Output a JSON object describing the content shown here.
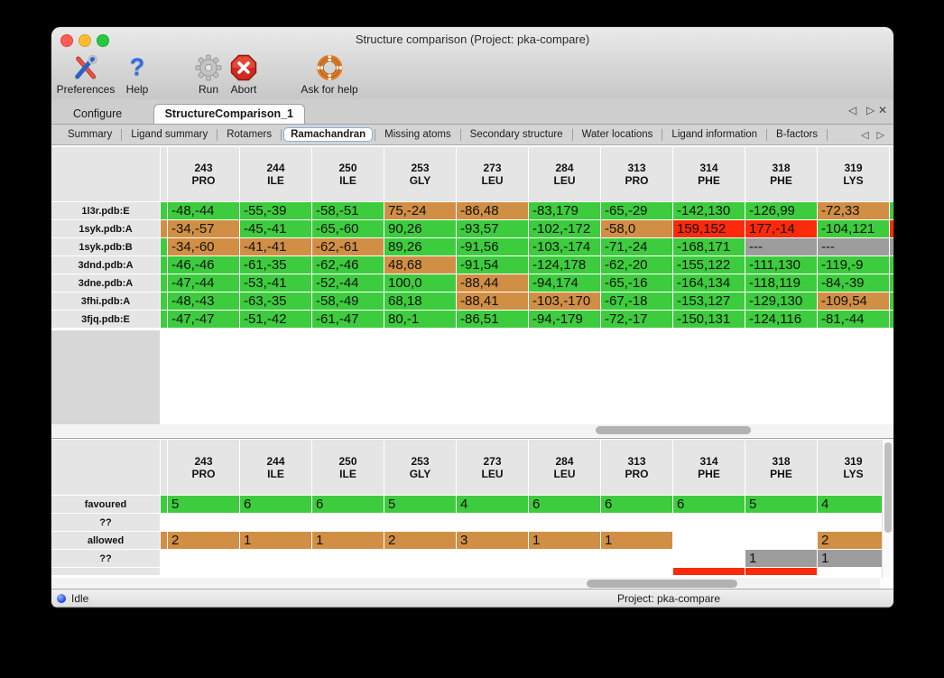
{
  "window": {
    "title": "Structure comparison (Project: pka-compare)"
  },
  "toolbar": {
    "items": [
      {
        "label": "Preferences",
        "icon": "tools-icon"
      },
      {
        "label": "Help",
        "icon": "question-icon"
      },
      {
        "label": "Run",
        "icon": "gear-icon"
      },
      {
        "label": "Abort",
        "icon": "stop-icon"
      },
      {
        "label": "Ask for help",
        "icon": "lifebuoy-icon"
      }
    ]
  },
  "main_tabs": {
    "items": [
      {
        "label": "Configure",
        "selected": false
      },
      {
        "label": "StructureComparison_1",
        "selected": true
      }
    ],
    "controls": {
      "prev": "◁",
      "next": "▷",
      "close": "✕"
    }
  },
  "sub_tabs": {
    "items": [
      "Summary",
      "Ligand summary",
      "Rotamers",
      "Ramachandran",
      "Missing atoms",
      "Secondary structure",
      "Water locations",
      "Ligand information",
      "B-factors"
    ],
    "selected": "Ramachandran",
    "controls": {
      "prev": "◁",
      "next": "▷"
    }
  },
  "legend_colors": {
    "favoured": "#3dcc3d",
    "allowed": "#d18f45",
    "outlier": "#fa2a0a",
    "missing": "#9d9d9d",
    "empty": "#ffffff"
  },
  "columns": [
    {
      "num": "243",
      "res": "PRO"
    },
    {
      "num": "244",
      "res": "ILE"
    },
    {
      "num": "250",
      "res": "ILE"
    },
    {
      "num": "253",
      "res": "GLY"
    },
    {
      "num": "273",
      "res": "LEU"
    },
    {
      "num": "284",
      "res": "LEU"
    },
    {
      "num": "313",
      "res": "PRO"
    },
    {
      "num": "314",
      "res": "PHE"
    },
    {
      "num": "318",
      "res": "PHE"
    },
    {
      "num": "319",
      "res": "LYS"
    }
  ],
  "structure_table": {
    "rows": [
      {
        "label": "1l3r.pdb:E",
        "edge": "g",
        "right": "g",
        "cells": [
          [
            "-48,-44",
            "g"
          ],
          [
            "-55,-39",
            "g"
          ],
          [
            "-58,-51",
            "g"
          ],
          [
            "75,-24",
            "o"
          ],
          [
            "-86,48",
            "o"
          ],
          [
            "-83,179",
            "g"
          ],
          [
            "-65,-29",
            "g"
          ],
          [
            "-142,130",
            "g"
          ],
          [
            "-126,99",
            "g"
          ],
          [
            "-72,33",
            "o"
          ]
        ]
      },
      {
        "label": "1syk.pdb:A",
        "edge": "o",
        "right": "r",
        "cells": [
          [
            "-34,-57",
            "o"
          ],
          [
            "-45,-41",
            "g"
          ],
          [
            "-65,-60",
            "g"
          ],
          [
            "90,26",
            "g"
          ],
          [
            "-93,57",
            "g"
          ],
          [
            "-102,-172",
            "g"
          ],
          [
            "-58,0",
            "o"
          ],
          [
            "159,152",
            "r"
          ],
          [
            "177,-14",
            "r"
          ],
          [
            "-104,121",
            "g"
          ]
        ]
      },
      {
        "label": "1syk.pdb:B",
        "edge": "g",
        "right": "x",
        "cells": [
          [
            "-34,-60",
            "o"
          ],
          [
            "-41,-41",
            "o"
          ],
          [
            "-62,-61",
            "o"
          ],
          [
            "89,26",
            "g"
          ],
          [
            "-91,56",
            "g"
          ],
          [
            "-103,-174",
            "g"
          ],
          [
            "-71,-24",
            "g"
          ],
          [
            "-168,171",
            "g"
          ],
          [
            "---",
            "x"
          ],
          [
            "---",
            "x"
          ]
        ]
      },
      {
        "label": "3dnd.pdb:A",
        "edge": "g",
        "right": "g",
        "cells": [
          [
            "-46,-46",
            "g"
          ],
          [
            "-61,-35",
            "g"
          ],
          [
            "-62,-46",
            "g"
          ],
          [
            "48,68",
            "o"
          ],
          [
            "-91,54",
            "g"
          ],
          [
            "-124,178",
            "g"
          ],
          [
            "-62,-20",
            "g"
          ],
          [
            "-155,122",
            "g"
          ],
          [
            "-111,130",
            "g"
          ],
          [
            "-119,-9",
            "g"
          ]
        ]
      },
      {
        "label": "3dne.pdb:A",
        "edge": "g",
        "right": "g",
        "cells": [
          [
            "-47,-44",
            "g"
          ],
          [
            "-53,-41",
            "g"
          ],
          [
            "-52,-44",
            "g"
          ],
          [
            "100,0",
            "g"
          ],
          [
            "-88,44",
            "o"
          ],
          [
            "-94,174",
            "g"
          ],
          [
            "-65,-16",
            "g"
          ],
          [
            "-164,134",
            "g"
          ],
          [
            "-118,119",
            "g"
          ],
          [
            "-84,-39",
            "g"
          ]
        ]
      },
      {
        "label": "3fhi.pdb:A",
        "edge": "g",
        "right": "g",
        "cells": [
          [
            "-48,-43",
            "g"
          ],
          [
            "-63,-35",
            "g"
          ],
          [
            "-58,-49",
            "g"
          ],
          [
            "68,18",
            "g"
          ],
          [
            "-88,41",
            "o"
          ],
          [
            "-103,-170",
            "o"
          ],
          [
            "-67,-18",
            "g"
          ],
          [
            "-153,127",
            "g"
          ],
          [
            "-129,130",
            "g"
          ],
          [
            "-109,54",
            "o"
          ]
        ]
      },
      {
        "label": "3fjq.pdb:E",
        "edge": "g",
        "right": "g",
        "cells": [
          [
            "-47,-47",
            "g"
          ],
          [
            "-51,-42",
            "g"
          ],
          [
            "-61,-47",
            "g"
          ],
          [
            "80,-1",
            "g"
          ],
          [
            "-86,51",
            "g"
          ],
          [
            "-94,-179",
            "g"
          ],
          [
            "-72,-17",
            "g"
          ],
          [
            "-150,131",
            "g"
          ],
          [
            "-124,116",
            "g"
          ],
          [
            "-81,-44",
            "g"
          ]
        ]
      }
    ]
  },
  "summary_table": {
    "rows": [
      {
        "label": "favoured",
        "edge": "g",
        "right": "w",
        "cells": [
          [
            "5",
            "g"
          ],
          [
            "6",
            "g"
          ],
          [
            "6",
            "g"
          ],
          [
            "5",
            "g"
          ],
          [
            "4",
            "g"
          ],
          [
            "6",
            "g"
          ],
          [
            "6",
            "g"
          ],
          [
            "6",
            "g"
          ],
          [
            "5",
            "g"
          ],
          [
            "4",
            "g"
          ]
        ]
      },
      {
        "label": "??",
        "edge": "w",
        "right": "w",
        "cells": [
          [
            "",
            "w"
          ],
          [
            "",
            "w"
          ],
          [
            "",
            "w"
          ],
          [
            "",
            "w"
          ],
          [
            "",
            "w"
          ],
          [
            "",
            "w"
          ],
          [
            "",
            "w"
          ],
          [
            "",
            "w"
          ],
          [
            "",
            "w"
          ],
          [
            "",
            "w"
          ]
        ]
      },
      {
        "label": "allowed",
        "edge": "o",
        "right": "w",
        "cells": [
          [
            "2",
            "o"
          ],
          [
            "1",
            "o"
          ],
          [
            "1",
            "o"
          ],
          [
            "2",
            "o"
          ],
          [
            "3",
            "o"
          ],
          [
            "1",
            "o"
          ],
          [
            "1",
            "o"
          ],
          [
            "",
            "w"
          ],
          [
            "",
            "w"
          ],
          [
            "2",
            "o"
          ]
        ]
      },
      {
        "label": "??",
        "edge": "w",
        "right": "w",
        "cells": [
          [
            "",
            "w"
          ],
          [
            "",
            "w"
          ],
          [
            "",
            "w"
          ],
          [
            "",
            "w"
          ],
          [
            "",
            "w"
          ],
          [
            "",
            "w"
          ],
          [
            "",
            "w"
          ],
          [
            "",
            "w"
          ],
          [
            "1",
            "x"
          ],
          [
            "1",
            "x"
          ]
        ]
      },
      {
        "label": "",
        "edge": "w",
        "right": "w",
        "cells": [
          [
            "",
            "w"
          ],
          [
            "",
            "w"
          ],
          [
            "",
            "w"
          ],
          [
            "",
            "w"
          ],
          [
            "",
            "w"
          ],
          [
            "",
            "w"
          ],
          [
            "",
            "w"
          ],
          [
            "",
            "r"
          ],
          [
            "",
            "r"
          ],
          [
            "",
            "w"
          ]
        ]
      }
    ]
  },
  "statusbar": {
    "state": "Idle",
    "project": "Project: pka-compare"
  }
}
